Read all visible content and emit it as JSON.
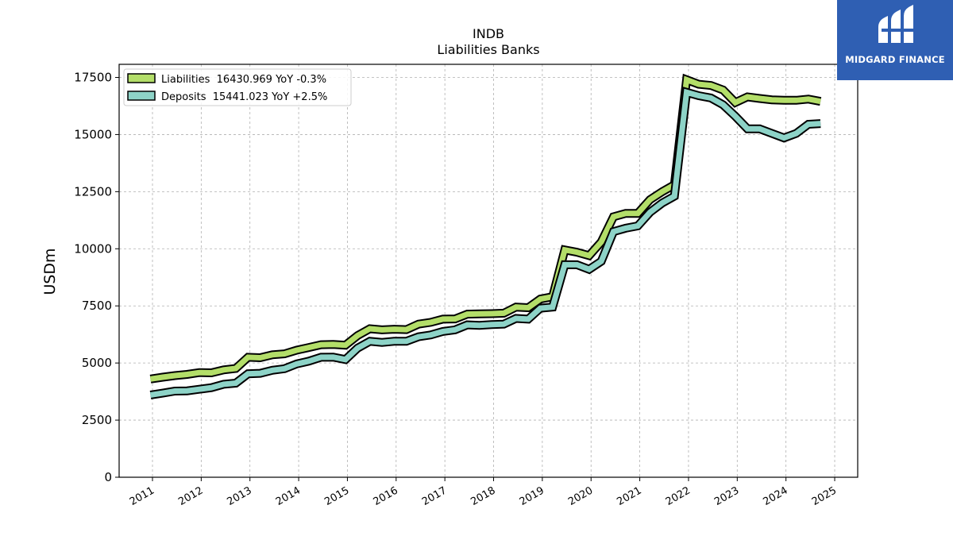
{
  "logo": {
    "text": "MIDGARD FINANCE",
    "icon": "midgard-logo-icon",
    "background": "#2f5fb3"
  },
  "chart_data": {
    "type": "line",
    "title": "INDB",
    "subtitle": "Liabilities Banks",
    "ylabel": "USDm",
    "xlabel": "",
    "ylim": [
      0,
      18000
    ],
    "xlim": [
      2010.55,
      2025.45
    ],
    "yticks": [
      0,
      2500,
      5000,
      7500,
      10000,
      12500,
      15000,
      17500
    ],
    "ytick_labels": [
      "0",
      "2500",
      "5000",
      "7500",
      "10000",
      "12500",
      "15000",
      "17500"
    ],
    "xticks": [
      2011,
      2012,
      2013,
      2014,
      2015,
      2016,
      2017,
      2018,
      2019,
      2020,
      2021,
      2022,
      2023,
      2024,
      2025
    ],
    "xtick_labels": [
      "2011",
      "2012",
      "2013",
      "2014",
      "2015",
      "2016",
      "2017",
      "2018",
      "2019",
      "2020",
      "2021",
      "2022",
      "2023",
      "2024",
      "2025"
    ],
    "grid": true,
    "legend_position": "top-left",
    "series": [
      {
        "name": "Liabilities",
        "legend": "Liabilities  16430.969 YoY -0.3%",
        "color": "#b3de69",
        "points": [
          [
            2010.96,
            4300
          ],
          [
            2011.21,
            4380
          ],
          [
            2011.46,
            4450
          ],
          [
            2011.71,
            4500
          ],
          [
            2011.96,
            4580
          ],
          [
            2012.21,
            4570
          ],
          [
            2012.46,
            4700
          ],
          [
            2012.71,
            4760
          ],
          [
            2012.96,
            5250
          ],
          [
            2013.21,
            5230
          ],
          [
            2013.46,
            5360
          ],
          [
            2013.71,
            5400
          ],
          [
            2013.96,
            5560
          ],
          [
            2014.21,
            5680
          ],
          [
            2014.46,
            5800
          ],
          [
            2014.71,
            5810
          ],
          [
            2014.96,
            5780
          ],
          [
            2015.21,
            6200
          ],
          [
            2015.46,
            6500
          ],
          [
            2015.71,
            6450
          ],
          [
            2015.96,
            6480
          ],
          [
            2016.21,
            6460
          ],
          [
            2016.46,
            6700
          ],
          [
            2016.71,
            6780
          ],
          [
            2016.96,
            6920
          ],
          [
            2017.21,
            6930
          ],
          [
            2017.46,
            7140
          ],
          [
            2017.71,
            7150
          ],
          [
            2017.96,
            7160
          ],
          [
            2018.21,
            7180
          ],
          [
            2018.46,
            7450
          ],
          [
            2018.71,
            7420
          ],
          [
            2018.96,
            7800
          ],
          [
            2019.21,
            7900
          ],
          [
            2019.46,
            9950
          ],
          [
            2019.71,
            9850
          ],
          [
            2019.96,
            9700
          ],
          [
            2020.21,
            10300
          ],
          [
            2020.46,
            11400
          ],
          [
            2020.71,
            11550
          ],
          [
            2020.96,
            11550
          ],
          [
            2021.21,
            12150
          ],
          [
            2021.46,
            12500
          ],
          [
            2021.71,
            12800
          ],
          [
            2021.96,
            17400
          ],
          [
            2022.21,
            17200
          ],
          [
            2022.46,
            17150
          ],
          [
            2022.71,
            16950
          ],
          [
            2022.96,
            16400
          ],
          [
            2023.21,
            16650
          ],
          [
            2023.46,
            16580
          ],
          [
            2023.71,
            16520
          ],
          [
            2023.96,
            16500
          ],
          [
            2024.21,
            16500
          ],
          [
            2024.46,
            16550
          ],
          [
            2024.71,
            16450
          ]
        ]
      },
      {
        "name": "Deposits",
        "legend": "Deposits  15441.023 YoY +2.5%",
        "color": "#8dd3c7",
        "points": [
          [
            2010.96,
            3600
          ],
          [
            2011.21,
            3680
          ],
          [
            2011.46,
            3770
          ],
          [
            2011.71,
            3780
          ],
          [
            2011.96,
            3850
          ],
          [
            2012.21,
            3920
          ],
          [
            2012.46,
            4070
          ],
          [
            2012.71,
            4120
          ],
          [
            2012.96,
            4530
          ],
          [
            2013.21,
            4550
          ],
          [
            2013.46,
            4680
          ],
          [
            2013.71,
            4750
          ],
          [
            2013.96,
            4960
          ],
          [
            2014.21,
            5080
          ],
          [
            2014.46,
            5250
          ],
          [
            2014.71,
            5260
          ],
          [
            2014.96,
            5150
          ],
          [
            2015.21,
            5650
          ],
          [
            2015.46,
            5950
          ],
          [
            2015.71,
            5900
          ],
          [
            2015.96,
            5950
          ],
          [
            2016.21,
            5950
          ],
          [
            2016.46,
            6150
          ],
          [
            2016.71,
            6230
          ],
          [
            2016.96,
            6380
          ],
          [
            2017.21,
            6450
          ],
          [
            2017.46,
            6670
          ],
          [
            2017.71,
            6650
          ],
          [
            2017.96,
            6680
          ],
          [
            2018.21,
            6700
          ],
          [
            2018.46,
            6950
          ],
          [
            2018.71,
            6920
          ],
          [
            2018.96,
            7400
          ],
          [
            2019.21,
            7450
          ],
          [
            2019.46,
            9300
          ],
          [
            2019.71,
            9300
          ],
          [
            2019.96,
            9100
          ],
          [
            2020.21,
            9450
          ],
          [
            2020.46,
            10750
          ],
          [
            2020.71,
            10900
          ],
          [
            2020.96,
            11000
          ],
          [
            2021.21,
            11600
          ],
          [
            2021.46,
            12000
          ],
          [
            2021.71,
            12300
          ],
          [
            2021.96,
            16850
          ],
          [
            2022.21,
            16700
          ],
          [
            2022.46,
            16600
          ],
          [
            2022.71,
            16300
          ],
          [
            2022.96,
            15800
          ],
          [
            2023.21,
            15250
          ],
          [
            2023.46,
            15250
          ],
          [
            2023.71,
            15050
          ],
          [
            2023.96,
            14850
          ],
          [
            2024.21,
            15050
          ],
          [
            2024.46,
            15450
          ],
          [
            2024.71,
            15480
          ]
        ]
      }
    ]
  }
}
